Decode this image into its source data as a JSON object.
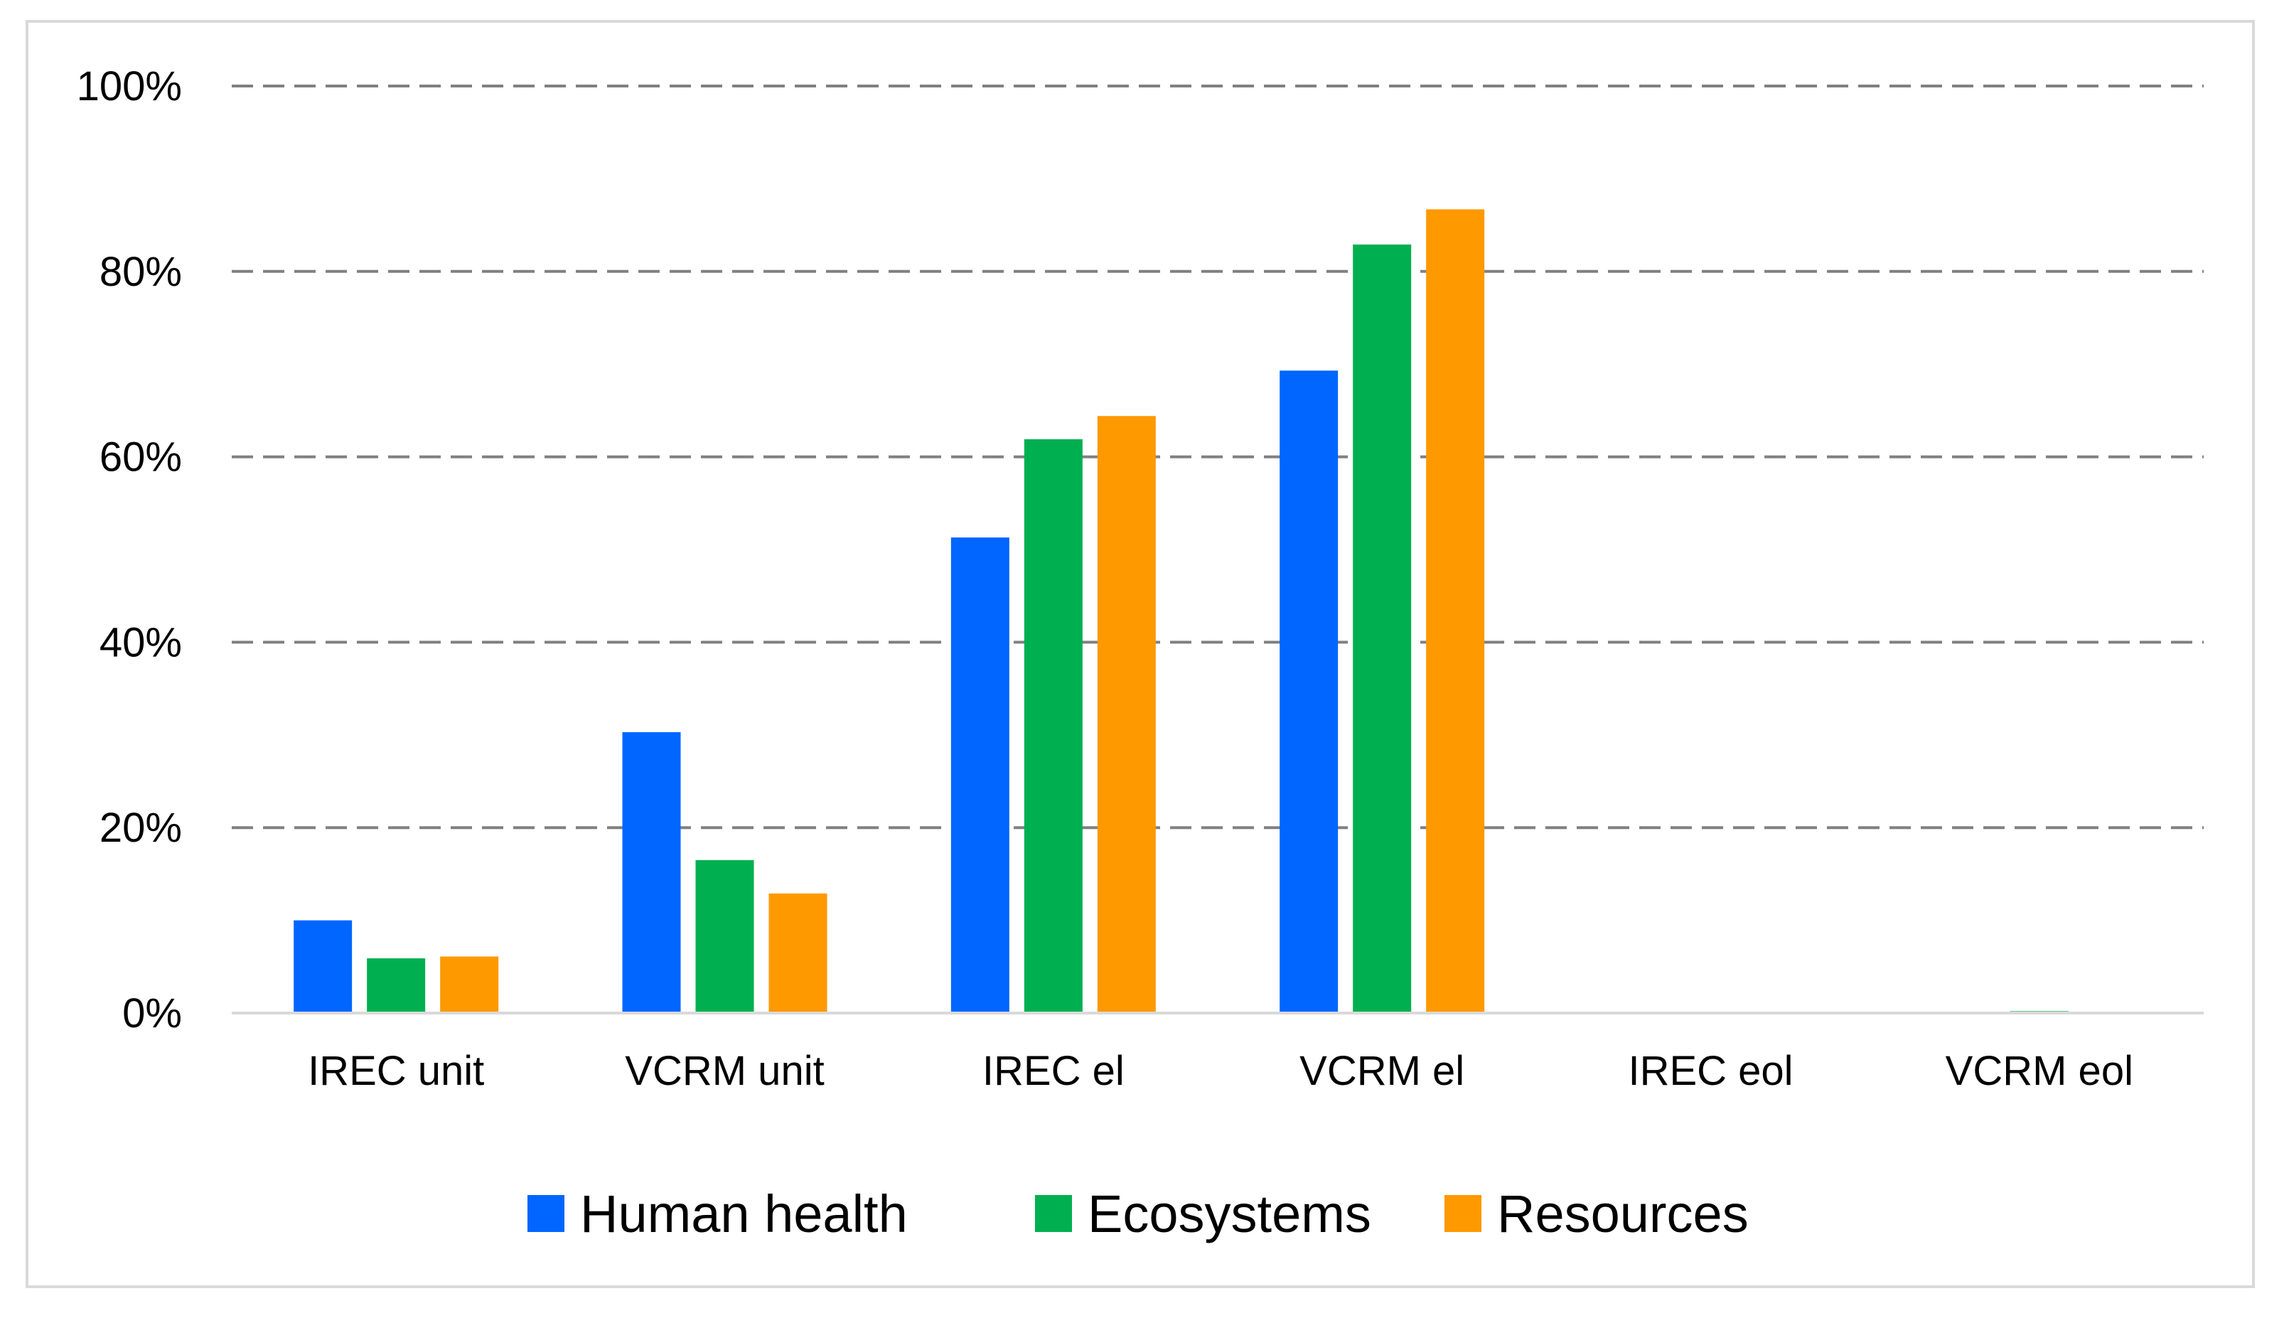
{
  "chart_data": {
    "type": "bar",
    "title": "",
    "xlabel": "",
    "ylabel": "",
    "ylim": [
      0,
      100
    ],
    "y_ticks": [
      {
        "value": 0,
        "label": "0%"
      },
      {
        "value": 20,
        "label": "20%"
      },
      {
        "value": 40,
        "label": "40%"
      },
      {
        "value": 60,
        "label": "60%"
      },
      {
        "value": 80,
        "label": "80%"
      },
      {
        "value": 100,
        "label": "100%"
      }
    ],
    "grid": true,
    "legend_position": "bottom",
    "categories": [
      "IREC unit",
      "VCRM unit",
      "IREC el",
      "VCRM el",
      "IREC eol",
      "VCRM eol"
    ],
    "series": [
      {
        "name": "Human health",
        "color": "#0066ff",
        "values": [
          10,
          30.3,
          51.3,
          69.3,
          0,
          0
        ]
      },
      {
        "name": "Ecosystems",
        "color": "#00b050",
        "values": [
          5.9,
          16.5,
          61.9,
          82.9,
          0,
          0.2
        ]
      },
      {
        "name": "Resources",
        "color": "#ff9900",
        "values": [
          6.1,
          12.9,
          64.4,
          86.7,
          0,
          0
        ]
      }
    ]
  }
}
